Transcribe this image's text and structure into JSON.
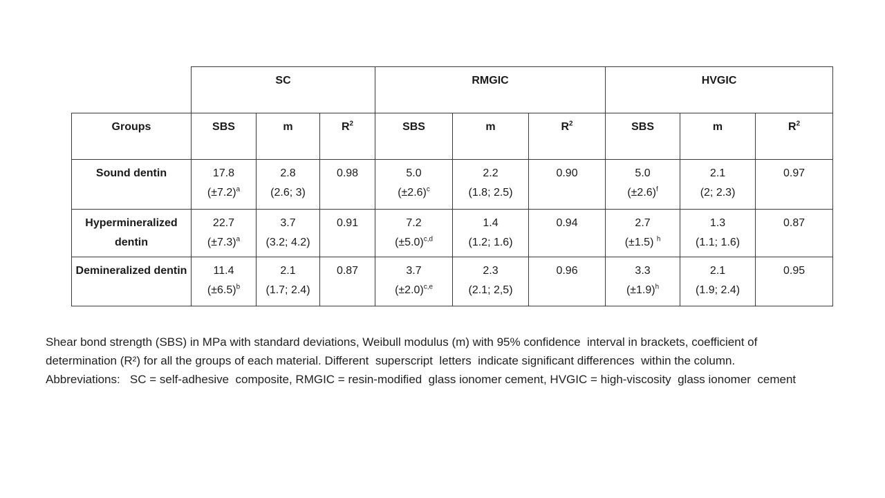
{
  "table": {
    "material_headers": [
      {
        "label": "SC"
      },
      {
        "label": "RMGIC"
      },
      {
        "label": "HVGIC"
      }
    ],
    "col_headers": {
      "groups": "Groups",
      "sbs": "SBS",
      "m": "m",
      "r2_base": "R",
      "r2_sup": "2"
    },
    "rows": [
      {
        "group": "Sound dentin",
        "cells": [
          {
            "value": "17.8",
            "ci": "(±7.2)",
            "sup": "a"
          },
          {
            "value": "2.8",
            "ci": "(2.6; 3)",
            "sup": ""
          },
          {
            "value": "0.98",
            "ci": "",
            "sup": ""
          },
          {
            "value": "5.0",
            "ci": "(±2.6)",
            "sup": "c"
          },
          {
            "value": "2.2",
            "ci": "(1.8; 2.5)",
            "sup": ""
          },
          {
            "value": "0.90",
            "ci": "",
            "sup": ""
          },
          {
            "value": "5.0",
            "ci": "(±2.6)",
            "sup": "f"
          },
          {
            "value": "2.1",
            "ci": "(2; 2.3)",
            "sup": ""
          },
          {
            "value": "0.97",
            "ci": "",
            "sup": ""
          }
        ]
      },
      {
        "group": "Hypermineralized dentin",
        "cells": [
          {
            "value": "22.7",
            "ci": "(±7.3)",
            "sup": "a"
          },
          {
            "value": "3.7",
            "ci": "(3.2; 4.2)",
            "sup": ""
          },
          {
            "value": "0.91",
            "ci": "",
            "sup": ""
          },
          {
            "value": "7.2",
            "ci": "(±5.0)",
            "sup": "c,d"
          },
          {
            "value": "1.4",
            "ci": "(1.2; 1.6)",
            "sup": ""
          },
          {
            "value": "0.94",
            "ci": "",
            "sup": ""
          },
          {
            "value": "2.7",
            "ci": "(±1.5) ",
            "sup": "h"
          },
          {
            "value": "1.3",
            "ci": "(1.1; 1.6)",
            "sup": ""
          },
          {
            "value": "0.87",
            "ci": "",
            "sup": ""
          }
        ]
      },
      {
        "group": "Demineralized dentin",
        "cells": [
          {
            "value": "11.4",
            "ci": "(±6.5)",
            "sup": "b"
          },
          {
            "value": "2.1",
            "ci": "(1.7; 2.4)",
            "sup": ""
          },
          {
            "value": "0.87",
            "ci": "",
            "sup": ""
          },
          {
            "value": "3.7",
            "ci": "(±2.0)",
            "sup": "c,e"
          },
          {
            "value": "2.3",
            "ci": "(2.1; 2,5)",
            "sup": ""
          },
          {
            "value": "0.96",
            "ci": "",
            "sup": ""
          },
          {
            "value": "3.3",
            "ci": "(±1.9)",
            "sup": "h"
          },
          {
            "value": "2.1",
            "ci": "(1.9; 2.4)",
            "sup": ""
          },
          {
            "value": "0.95",
            "ci": "",
            "sup": ""
          }
        ]
      }
    ]
  },
  "caption": {
    "line1": "Shear bond strength (SBS) in MPa with standard deviations, Weibull modulus (m) with 95% confidence  interval in brackets, coefficient of",
    "line2": "determination (R²) for all the groups of each material. Different  superscript  letters  indicate significant differences  within the column.",
    "line3": "Abbreviations:   SC = self-adhesive  composite, RMGIC = resin-modified  glass ionomer cement, HVGIC = high-viscosity  glass ionomer  cement"
  }
}
